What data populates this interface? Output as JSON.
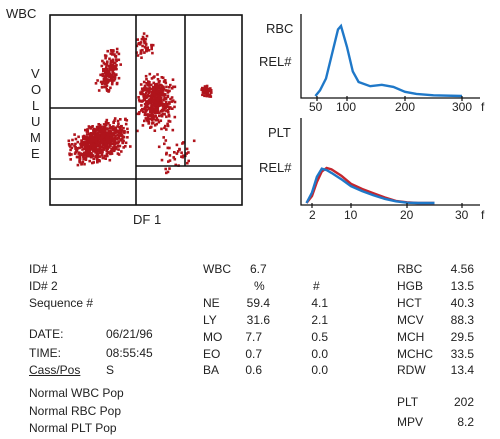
{
  "scatter": {
    "wbc_label": "WBC",
    "y_letters": [
      "V",
      "O",
      "L",
      "U",
      "M",
      "E"
    ],
    "x_label": "DF 1"
  },
  "histograms": {
    "rbc_label": "RBC",
    "rbc_rel": "REL#",
    "rbc_ticks": [
      "50",
      "100",
      "200",
      "300",
      "f"
    ],
    "plt_label": "PLT",
    "plt_rel": "REL#",
    "plt_ticks": [
      "2",
      "10",
      "20",
      "30",
      "f"
    ],
    "colors": {
      "curve_blue": "#1f78c8",
      "curve_red": "#c4262e",
      "dots": "#b0141c"
    }
  },
  "chart_data": [
    {
      "type": "line",
      "title": "RBC",
      "ylabel": "REL#",
      "x_ticks": [
        "50",
        "100",
        "200",
        "300",
        "f"
      ],
      "series": [
        {
          "values_x": [
            45,
            55,
            65,
            75,
            85,
            90,
            100,
            110,
            120,
            140,
            160,
            180,
            200,
            220,
            250,
            300
          ],
          "values_y": [
            0,
            8,
            25,
            60,
            95,
            100,
            70,
            35,
            20,
            14,
            16,
            13,
            6,
            3,
            1,
            0
          ]
        }
      ]
    },
    {
      "type": "line",
      "title": "PLT",
      "ylabel": "REL#",
      "x_ticks": [
        "2",
        "10",
        "20",
        "30",
        "f"
      ],
      "series": [
        {
          "values_x": [
            1,
            2,
            3,
            4,
            5,
            6,
            8,
            10,
            12,
            14,
            16,
            18,
            20,
            22,
            25
          ],
          "values_y": [
            0,
            20,
            60,
            90,
            100,
            96,
            78,
            55,
            40,
            28,
            16,
            6,
            2,
            0,
            0
          ]
        },
        {
          "values_x": [
            1,
            2,
            3,
            4,
            5,
            6,
            8,
            10,
            12,
            14,
            16,
            18,
            20,
            22,
            25
          ],
          "values_y": [
            0,
            30,
            75,
            98,
            94,
            86,
            68,
            48,
            34,
            22,
            12,
            5,
            1,
            0,
            0
          ]
        }
      ]
    }
  ],
  "patient": {
    "id1": "ID# 1",
    "id2": "ID# 2",
    "sequence": "Sequence #",
    "date_label": "DATE:",
    "date_value": "06/21/96",
    "time_label": "TIME:",
    "time_value": "08:55:45",
    "cass_label": "Cass/Pos",
    "cass_value": "S"
  },
  "wbc": {
    "label": "WBC",
    "value": "6.7",
    "pct_header": "%",
    "num_header": "#",
    "rows": [
      {
        "name": "NE",
        "pct": "59.4",
        "num": "4.1"
      },
      {
        "name": "LY",
        "pct": "31.6",
        "num": "2.1"
      },
      {
        "name": "MO",
        "pct": "7.7",
        "num": "0.5"
      },
      {
        "name": "EO",
        "pct": "0.7",
        "num": "0.0"
      },
      {
        "name": "BA",
        "pct": "0.6",
        "num": "0.0"
      }
    ]
  },
  "rbc_params": [
    {
      "name": "RBC",
      "value": "4.56"
    },
    {
      "name": "HGB",
      "value": "13.5"
    },
    {
      "name": "HCT",
      "value": "40.3"
    },
    {
      "name": "MCV",
      "value": "88.3"
    },
    {
      "name": "MCH",
      "value": "29.5"
    },
    {
      "name": "MCHC",
      "value": "33.5"
    },
    {
      "name": "RDW",
      "value": "13.4"
    }
  ],
  "plt_params": [
    {
      "name": "PLT",
      "value": "202"
    },
    {
      "name": "MPV",
      "value": "8.2"
    }
  ],
  "flags": [
    "Normal WBC Pop",
    "Normal RBC Pop",
    "Normal PLT Pop"
  ]
}
